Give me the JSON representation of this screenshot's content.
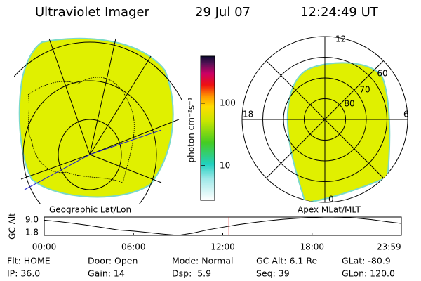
{
  "header": {
    "title": "Ultraviolet Imager",
    "date": "29 Jul 07",
    "time": "12:24:49 UT"
  },
  "colorbar": {
    "label": "photon cm⁻²s⁻¹",
    "lim": [
      2.8,
      565
    ],
    "ticks": [
      10,
      100
    ],
    "log": true
  },
  "polar": {
    "mlt_labels": [
      "12",
      "18",
      "6",
      "0"
    ],
    "lat_labels": [
      60,
      70,
      80
    ]
  },
  "captions": {
    "left": "Geographic Lat/Lon",
    "right": "Apex MLat/MLT"
  },
  "chart_data": {
    "type": "line",
    "ylabel": "GC Alt",
    "color": "#000000",
    "marker_color": "#dd0000",
    "x": [
      0,
      1,
      2,
      3,
      4,
      5,
      6,
      7,
      8,
      9,
      10,
      11,
      12,
      13,
      14,
      15,
      16,
      17,
      18,
      19,
      20,
      21,
      22,
      23,
      23.983
    ],
    "values": [
      7.8,
      7.2,
      6.5,
      5.7,
      4.8,
      3.9,
      3.5,
      2.9,
      2.3,
      1.8,
      2.7,
      4.0,
      5.0,
      6.0,
      6.8,
      7.5,
      8.1,
      8.5,
      8.8,
      9.0,
      8.9,
      8.6,
      8.0,
      7.2,
      6.5
    ],
    "marker_x": 12.414,
    "xlim": [
      0,
      24
    ],
    "ylim": [
      1.8,
      9.0
    ],
    "xticks": [
      {
        "value": 0,
        "label": "00:00"
      },
      {
        "value": 6,
        "label": "06:00"
      },
      {
        "value": 12,
        "label": "12:00"
      },
      {
        "value": 18,
        "label": "18:00"
      },
      {
        "value": 23.983,
        "label": "23:59"
      }
    ],
    "yticks": [
      {
        "value": 9.0,
        "label": "9.0"
      },
      1.8
    ]
  },
  "footer": {
    "rows": [
      [
        "Flt: HOME",
        "Door: Open",
        "Mode: Normal",
        "GC Alt: 6.1 Re",
        "GLat: -80.9"
      ],
      [
        "IP: 36.0",
        "Gain: 14",
        "Dsp:  5.9",
        "Seq: 39",
        "GLon: 120.0"
      ]
    ]
  }
}
